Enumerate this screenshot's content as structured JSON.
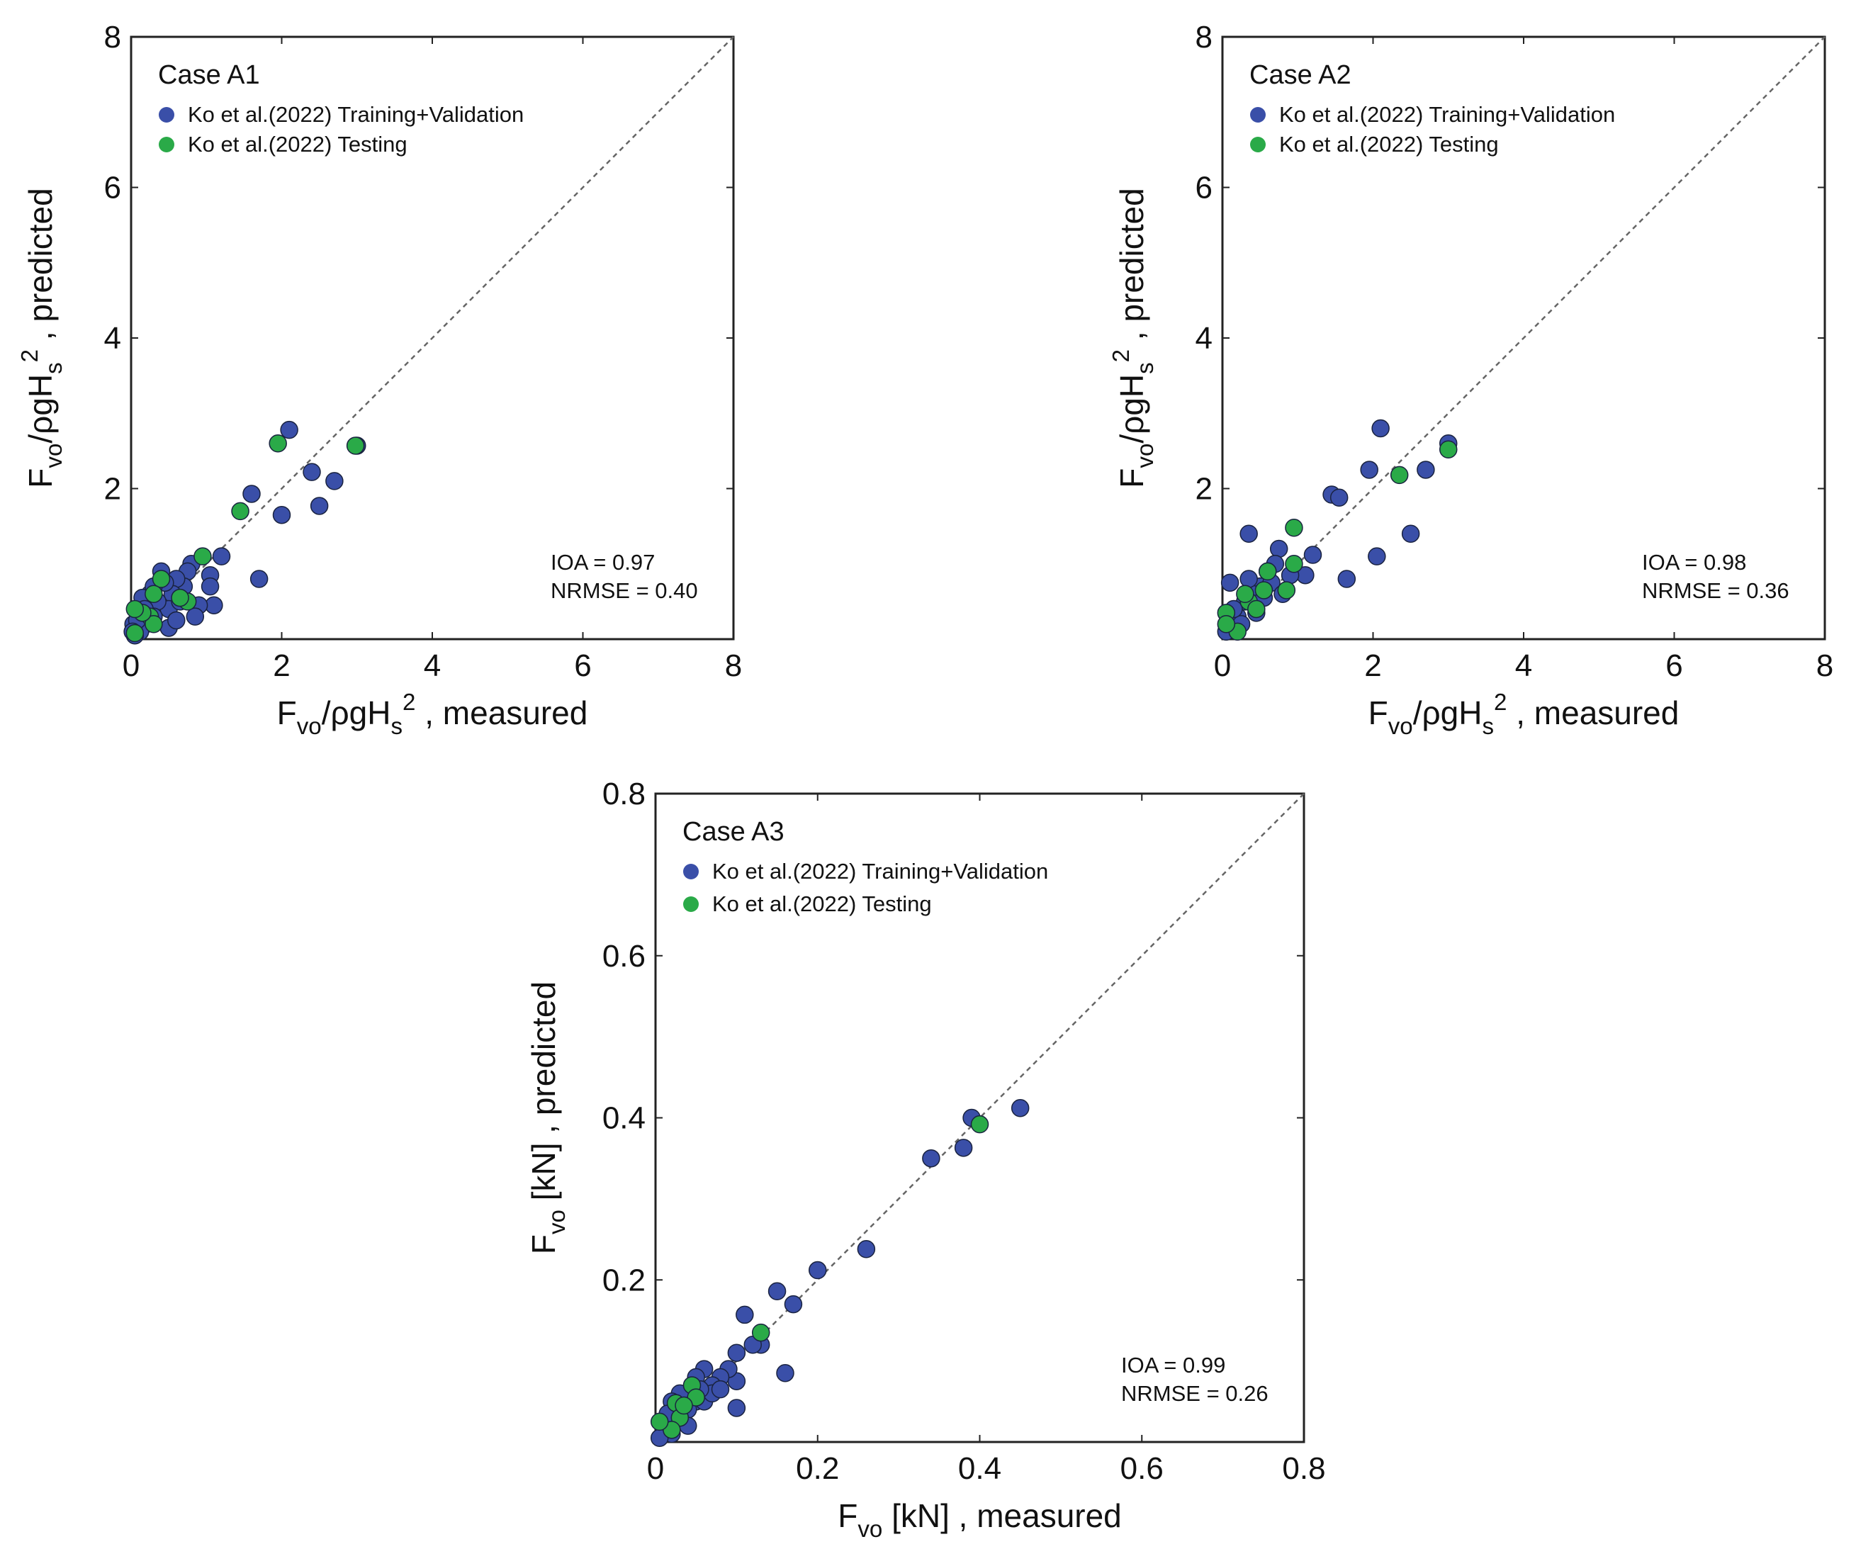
{
  "chart_data": [
    {
      "type": "scatter",
      "title": "Case A1",
      "xlim": [
        0,
        8
      ],
      "ylim": [
        0,
        8
      ],
      "xticks": [
        "0",
        "2",
        "4",
        "6",
        "8"
      ],
      "yticks": [
        "2",
        "4",
        "6",
        "8"
      ],
      "xlabel": "F_vo/ρgH_s^2 , measured",
      "ylabel": "F_vo/ρgH_s^2 , predicted",
      "reference_line": "y = x",
      "legend_position": "top-left",
      "stats": {
        "ioa": "IOA = 0.97",
        "nrmse": "NRMSE = 0.40"
      },
      "series": [
        {
          "name": "Ko et al.(2022) Training+Validation",
          "color": "#3a4fa8",
          "points": [
            [
              2.1,
              2.78
            ],
            [
              1.6,
              1.93
            ],
            [
              2.4,
              2.22
            ],
            [
              2.7,
              2.1
            ],
            [
              3.0,
              2.57
            ],
            [
              2.0,
              1.65
            ],
            [
              2.5,
              1.77
            ],
            [
              1.7,
              0.8
            ],
            [
              1.2,
              1.1
            ],
            [
              1.05,
              0.85
            ],
            [
              1.05,
              0.7
            ],
            [
              1.1,
              0.45
            ],
            [
              0.9,
              0.45
            ],
            [
              0.8,
              1.0
            ],
            [
              0.75,
              0.9
            ],
            [
              0.7,
              0.7
            ],
            [
              0.6,
              0.8
            ],
            [
              0.55,
              0.6
            ],
            [
              0.5,
              0.4
            ],
            [
              0.45,
              0.75
            ],
            [
              0.4,
              0.9
            ],
            [
              0.35,
              0.5
            ],
            [
              0.3,
              0.3
            ],
            [
              0.25,
              0.6
            ],
            [
              0.2,
              0.2
            ],
            [
              0.15,
              0.55
            ],
            [
              0.12,
              0.1
            ],
            [
              0.1,
              0.35
            ],
            [
              0.05,
              0.05
            ],
            [
              0.03,
              0.2
            ],
            [
              0.85,
              0.3
            ],
            [
              0.65,
              0.5
            ],
            [
              0.5,
              0.15
            ],
            [
              0.3,
              0.7
            ],
            [
              0.18,
              0.4
            ],
            [
              0.08,
              0.25
            ],
            [
              0.02,
              0.1
            ],
            [
              0.6,
              0.25
            ]
          ]
        },
        {
          "name": "Ko et al.(2022) Testing",
          "color": "#2aaa48",
          "points": [
            [
              1.95,
              2.6
            ],
            [
              2.98,
              2.57
            ],
            [
              1.45,
              1.7
            ],
            [
              0.95,
              1.1
            ],
            [
              0.75,
              0.5
            ],
            [
              0.4,
              0.8
            ],
            [
              0.3,
              0.6
            ],
            [
              0.25,
              0.3
            ],
            [
              0.3,
              0.2
            ],
            [
              0.15,
              0.35
            ],
            [
              0.05,
              0.4
            ],
            [
              0.05,
              0.08
            ],
            [
              0.65,
              0.55
            ]
          ]
        }
      ]
    },
    {
      "type": "scatter",
      "title": "Case A2",
      "xlim": [
        0,
        8
      ],
      "ylim": [
        0,
        8
      ],
      "xticks": [
        "0",
        "2",
        "4",
        "6",
        "8"
      ],
      "yticks": [
        "2",
        "4",
        "6",
        "8"
      ],
      "xlabel": "F_vo/ρgH_s^2 , measured",
      "ylabel": "F_vo/ρgH_s^2 , predicted",
      "reference_line": "y = x",
      "legend_position": "top-left",
      "stats": {
        "ioa": "IOA = 0.98",
        "nrmse": "NRMSE = 0.36"
      },
      "series": [
        {
          "name": "Ko et al.(2022) Training+Validation",
          "color": "#3a4fa8",
          "points": [
            [
              2.1,
              2.8
            ],
            [
              3.0,
              2.6
            ],
            [
              2.7,
              2.25
            ],
            [
              1.95,
              2.25
            ],
            [
              1.45,
              1.92
            ],
            [
              1.55,
              1.88
            ],
            [
              2.5,
              1.4
            ],
            [
              2.05,
              1.1
            ],
            [
              1.65,
              0.8
            ],
            [
              1.2,
              1.12
            ],
            [
              1.1,
              0.85
            ],
            [
              0.35,
              1.4
            ],
            [
              0.75,
              1.2
            ],
            [
              0.7,
              1.0
            ],
            [
              0.6,
              0.9
            ],
            [
              0.5,
              0.7
            ],
            [
              0.4,
              0.6
            ],
            [
              0.3,
              0.5
            ],
            [
              0.2,
              0.3
            ],
            [
              0.1,
              0.75
            ],
            [
              0.05,
              0.1
            ],
            [
              0.25,
              0.2
            ],
            [
              0.15,
              0.4
            ],
            [
              0.45,
              0.35
            ],
            [
              0.55,
              0.55
            ],
            [
              0.65,
              0.75
            ],
            [
              0.8,
              0.6
            ],
            [
              0.9,
              0.85
            ],
            [
              0.35,
              0.8
            ]
          ]
        },
        {
          "name": "Ko et al.(2022) Testing",
          "color": "#2aaa48",
          "points": [
            [
              3.0,
              2.52
            ],
            [
              2.35,
              2.18
            ],
            [
              0.95,
              1.48
            ],
            [
              0.95,
              1.0
            ],
            [
              0.85,
              0.65
            ],
            [
              0.6,
              0.9
            ],
            [
              0.55,
              0.65
            ],
            [
              0.35,
              0.5
            ],
            [
              0.3,
              0.6
            ],
            [
              0.2,
              0.1
            ],
            [
              0.05,
              0.35
            ],
            [
              0.05,
              0.2
            ],
            [
              0.45,
              0.4
            ]
          ]
        }
      ]
    },
    {
      "type": "scatter",
      "title": "Case A3",
      "xlim": [
        0,
        0.8
      ],
      "ylim": [
        0,
        0.8
      ],
      "xticks": [
        "0",
        "0.2",
        "0.4",
        "0.6",
        "0.8"
      ],
      "yticks": [
        "0.2",
        "0.4",
        "0.6",
        "0.8"
      ],
      "xlabel": "F_vo [kN] , measured",
      "ylabel": "F_vo [kN] , predicted",
      "reference_line": "y = x",
      "legend_position": "top-left",
      "stats": {
        "ioa": "IOA = 0.99",
        "nrmse": "NRMSE = 0.26"
      },
      "series": [
        {
          "name": "Ko et al.(2022) Training+Validation",
          "color": "#3a4fa8",
          "points": [
            [
              0.45,
              0.412
            ],
            [
              0.39,
              0.4
            ],
            [
              0.38,
              0.363
            ],
            [
              0.34,
              0.35
            ],
            [
              0.26,
              0.238
            ],
            [
              0.2,
              0.212
            ],
            [
              0.15,
              0.186
            ],
            [
              0.17,
              0.17
            ],
            [
              0.11,
              0.157
            ],
            [
              0.13,
              0.12
            ],
            [
              0.12,
              0.12
            ],
            [
              0.1,
              0.11
            ],
            [
              0.16,
              0.085
            ],
            [
              0.1,
              0.075
            ],
            [
              0.1,
              0.042
            ],
            [
              0.09,
              0.09
            ],
            [
              0.08,
              0.08
            ],
            [
              0.07,
              0.07
            ],
            [
              0.06,
              0.09
            ],
            [
              0.05,
              0.05
            ],
            [
              0.04,
              0.04
            ],
            [
              0.03,
              0.06
            ],
            [
              0.02,
              0.01
            ],
            [
              0.01,
              0.02
            ],
            [
              0.005,
              0.005
            ],
            [
              0.03,
              0.03
            ],
            [
              0.06,
              0.05
            ],
            [
              0.07,
              0.06
            ],
            [
              0.05,
              0.08
            ],
            [
              0.04,
              0.02
            ],
            [
              0.02,
              0.05
            ],
            [
              0.015,
              0.035
            ],
            [
              0.08,
              0.065
            ],
            [
              0.055,
              0.065
            ]
          ]
        },
        {
          "name": "Ko et al.(2022) Testing",
          "color": "#2aaa48",
          "points": [
            [
              0.4,
              0.392
            ],
            [
              0.13,
              0.135
            ],
            [
              0.045,
              0.07
            ],
            [
              0.05,
              0.055
            ],
            [
              0.025,
              0.048
            ],
            [
              0.03,
              0.03
            ],
            [
              0.02,
              0.015
            ],
            [
              0.005,
              0.025
            ],
            [
              0.035,
              0.045
            ]
          ]
        }
      ]
    }
  ]
}
